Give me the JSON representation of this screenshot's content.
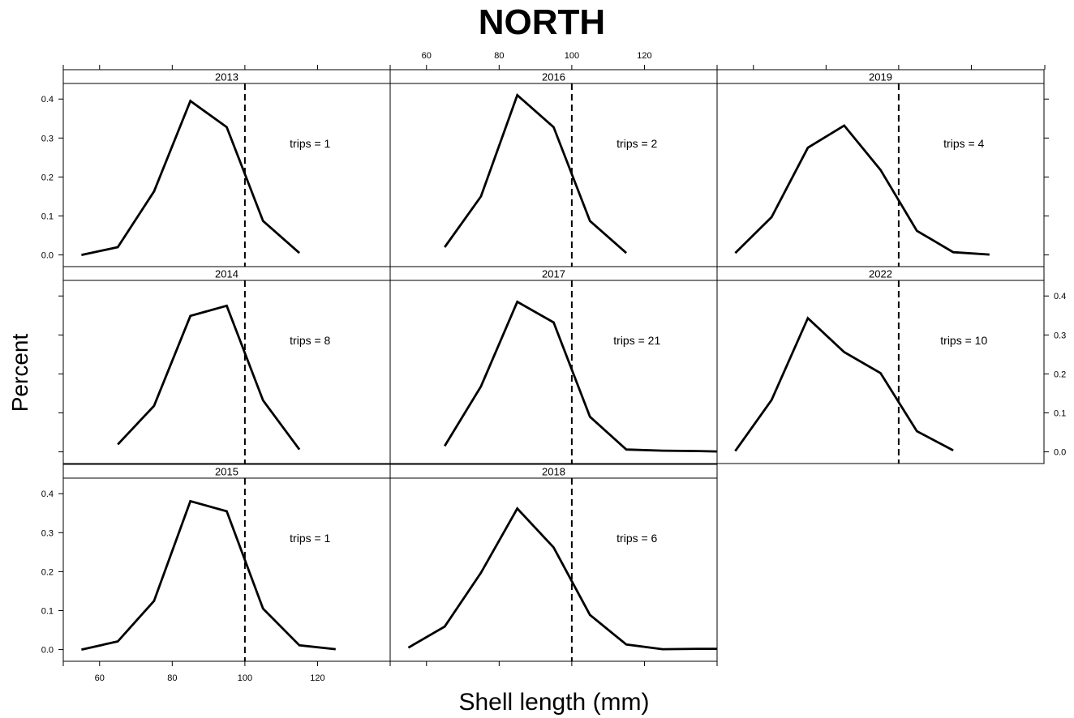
{
  "chart_data": {
    "type": "line",
    "title": "NORTH",
    "xlabel": "Shell length (mm)",
    "ylabel": "Percent",
    "xlim": [
      50,
      140
    ],
    "ylim": [
      -0.03,
      0.44
    ],
    "x_ticks": [
      60,
      80,
      100,
      120
    ],
    "y_ticks": [
      0.0,
      0.1,
      0.2,
      0.3,
      0.4
    ],
    "reference_line_x": 100,
    "reference_line_style": "dashed",
    "grid": false,
    "layout": "3x3 lattice panels",
    "line_color": "#000000",
    "panels": [
      {
        "year": "2013",
        "annotation": "trips = 1",
        "x": [
          55,
          65,
          75,
          85,
          95,
          105,
          115
        ],
        "y": [
          0.0,
          0.02,
          0.163,
          0.395,
          0.328,
          0.087,
          0.005
        ]
      },
      {
        "year": "2016",
        "annotation": "trips = 2",
        "x": [
          65,
          75,
          85,
          95,
          105,
          115
        ],
        "y": [
          0.02,
          0.15,
          0.41,
          0.328,
          0.087,
          0.005
        ]
      },
      {
        "year": "2019",
        "annotation": "trips = 4",
        "x": [
          55,
          65,
          75,
          85,
          95,
          105,
          115,
          125
        ],
        "y": [
          0.005,
          0.097,
          0.275,
          0.332,
          0.218,
          0.062,
          0.007,
          0.001
        ]
      },
      {
        "year": "2014",
        "annotation": "trips = 8",
        "x": [
          65,
          75,
          85,
          95,
          105,
          115
        ],
        "y": [
          0.019,
          0.118,
          0.349,
          0.375,
          0.132,
          0.006
        ]
      },
      {
        "year": "2017",
        "annotation": "trips = 21",
        "x": [
          65,
          75,
          85,
          95,
          105,
          115,
          125,
          135,
          140
        ],
        "y": [
          0.015,
          0.168,
          0.385,
          0.332,
          0.09,
          0.006,
          0.003,
          0.002,
          0.001
        ]
      },
      {
        "year": "2022",
        "annotation": "trips = 10",
        "x": [
          55,
          65,
          75,
          85,
          95,
          105,
          115
        ],
        "y": [
          0.002,
          0.133,
          0.343,
          0.256,
          0.202,
          0.053,
          0.004
        ]
      },
      {
        "year": "2015",
        "annotation": "trips = 1",
        "x": [
          55,
          65,
          75,
          85,
          95,
          105,
          115,
          125
        ],
        "y": [
          0.0,
          0.021,
          0.125,
          0.381,
          0.355,
          0.105,
          0.011,
          0.001
        ]
      },
      {
        "year": "2018",
        "annotation": "trips = 6",
        "x": [
          55,
          65,
          75,
          85,
          95,
          105,
          115,
          125,
          135,
          140
        ],
        "y": [
          0.005,
          0.059,
          0.197,
          0.362,
          0.262,
          0.089,
          0.013,
          0.001,
          0.002,
          0.002
        ]
      }
    ]
  }
}
